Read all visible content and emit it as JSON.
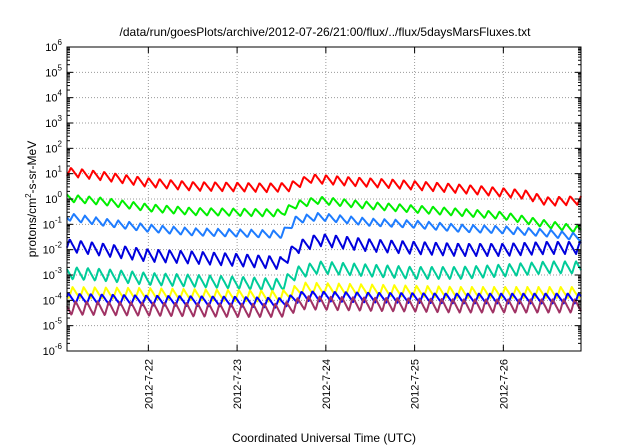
{
  "chart_data": {
    "type": "line",
    "title": "/data/run/goesPlots/archive/2012-07-26/21:00/flux/../flux/5daysMarsFluxes.txt",
    "xlabel": "Coordinated Universal Time (UTC)",
    "ylabel_parts": [
      "protons/cm",
      "2",
      "-s-sr-MeV"
    ],
    "y_scale": "log",
    "ylim": [
      1e-06,
      1000000.0
    ],
    "y_tick_exponents": [
      -6,
      -5,
      -4,
      -3,
      -2,
      -1,
      0,
      1,
      2,
      3,
      4,
      5,
      6
    ],
    "xlim": [
      "2012-07-21 02:00",
      "2012-07-26 21:00"
    ],
    "x_ticks": [
      {
        "label": "2012-7-22",
        "t": "2012-07-22 00:00"
      },
      {
        "label": "2012-7-23",
        "t": "2012-07-23 00:00"
      },
      {
        "label": "2012-7-24",
        "t": "2012-07-24 00:00"
      },
      {
        "label": "2012-7-25",
        "t": "2012-07-25 00:00"
      },
      {
        "label": "2012-7-26",
        "t": "2012-07-26 00:00"
      }
    ],
    "grid": true,
    "series": [
      {
        "color": "#ff0000",
        "amp_dex": 0.35,
        "points": [
          [
            "2012-07-21 02:00",
            12
          ],
          [
            "2012-07-21 12:00",
            8
          ],
          [
            "2012-07-22 00:00",
            4.5
          ],
          [
            "2012-07-22 12:00",
            3.2
          ],
          [
            "2012-07-23 00:00",
            3
          ],
          [
            "2012-07-23 08:00",
            2.8
          ],
          [
            "2012-07-23 14:00",
            3
          ],
          [
            "2012-07-23 20:00",
            6.5
          ],
          [
            "2012-07-24 06:00",
            5
          ],
          [
            "2012-07-24 18:00",
            4
          ],
          [
            "2012-07-25 06:00",
            3
          ],
          [
            "2012-07-25 18:00",
            2.2
          ],
          [
            "2012-07-26 06:00",
            1.5
          ],
          [
            "2012-07-26 12:00",
            0.8
          ],
          [
            "2012-07-26 21:00",
            0.9
          ]
        ]
      },
      {
        "color": "#00ee00",
        "amp_dex": 0.3,
        "points": [
          [
            "2012-07-21 02:00",
            1.1
          ],
          [
            "2012-07-21 12:00",
            0.8
          ],
          [
            "2012-07-22 00:00",
            0.45
          ],
          [
            "2012-07-22 12:00",
            0.32
          ],
          [
            "2012-07-23 00:00",
            0.3
          ],
          [
            "2012-07-23 12:00",
            0.28
          ],
          [
            "2012-07-23 16:00",
            0.6
          ],
          [
            "2012-07-23 22:00",
            0.9
          ],
          [
            "2012-07-24 12:00",
            0.55
          ],
          [
            "2012-07-25 00:00",
            0.4
          ],
          [
            "2012-07-25 12:00",
            0.3
          ],
          [
            "2012-07-26 00:00",
            0.22
          ],
          [
            "2012-07-26 12:00",
            0.1
          ],
          [
            "2012-07-26 21:00",
            0.06
          ]
        ]
      },
      {
        "color": "#1e7cff",
        "amp_dex": 0.3,
        "points": [
          [
            "2012-07-21 02:00",
            0.2
          ],
          [
            "2012-07-21 12:00",
            0.12
          ],
          [
            "2012-07-22 00:00",
            0.07
          ],
          [
            "2012-07-22 12:00",
            0.05
          ],
          [
            "2012-07-23 00:00",
            0.045
          ],
          [
            "2012-07-23 12:00",
            0.04
          ],
          [
            "2012-07-23 16:00",
            0.15
          ],
          [
            "2012-07-23 22:00",
            0.2
          ],
          [
            "2012-07-24 12:00",
            0.12
          ],
          [
            "2012-07-25 00:00",
            0.1
          ],
          [
            "2012-07-25 12:00",
            0.07
          ],
          [
            "2012-07-26 00:00",
            0.06
          ],
          [
            "2012-07-26 12:00",
            0.045
          ],
          [
            "2012-07-26 21:00",
            0.03
          ]
        ]
      },
      {
        "color": "#0000dd",
        "amp_dex": 0.5,
        "points": [
          [
            "2012-07-21 02:00",
            0.015
          ],
          [
            "2012-07-21 12:00",
            0.01
          ],
          [
            "2012-07-22 00:00",
            0.006
          ],
          [
            "2012-07-22 12:00",
            0.005
          ],
          [
            "2012-07-23 00:00",
            0.004
          ],
          [
            "2012-07-23 12:00",
            0.003
          ],
          [
            "2012-07-23 16:00",
            0.012
          ],
          [
            "2012-07-23 22:00",
            0.025
          ],
          [
            "2012-07-24 12:00",
            0.015
          ],
          [
            "2012-07-25 00:00",
            0.012
          ],
          [
            "2012-07-25 12:00",
            0.01
          ],
          [
            "2012-07-26 00:00",
            0.01
          ],
          [
            "2012-07-26 12:00",
            0.012
          ],
          [
            "2012-07-26 21:00",
            0.012
          ]
        ]
      },
      {
        "color": "#00cc99",
        "amp_dex": 0.5,
        "points": [
          [
            "2012-07-21 02:00",
            0.0012
          ],
          [
            "2012-07-21 12:00",
            0.001
          ],
          [
            "2012-07-22 00:00",
            0.0007
          ],
          [
            "2012-07-23 00:00",
            0.0005
          ],
          [
            "2012-07-23 12:00",
            0.0004
          ],
          [
            "2012-07-23 16:00",
            0.0012
          ],
          [
            "2012-07-23 22:00",
            0.002
          ],
          [
            "2012-07-24 12:00",
            0.0015
          ],
          [
            "2012-07-25 00:00",
            0.0012
          ],
          [
            "2012-07-25 12:00",
            0.0012
          ],
          [
            "2012-07-26 00:00",
            0.0015
          ],
          [
            "2012-07-26 12:00",
            0.002
          ],
          [
            "2012-07-26 21:00",
            0.002
          ]
        ]
      },
      {
        "color": "#ffff00",
        "amp_dex": 0.45,
        "points": [
          [
            "2012-07-21 02:00",
            0.0002
          ],
          [
            "2012-07-22 00:00",
            0.00018
          ],
          [
            "2012-07-23 00:00",
            0.00015
          ],
          [
            "2012-07-23 12:00",
            0.00014
          ],
          [
            "2012-07-23 18:00",
            0.0003
          ],
          [
            "2012-07-24 12:00",
            0.00025
          ],
          [
            "2012-07-25 12:00",
            0.0002
          ],
          [
            "2012-07-26 12:00",
            0.0002
          ],
          [
            "2012-07-26 21:00",
            0.0002
          ]
        ]
      },
      {
        "color": "#0000ff",
        "amp_dex": 0.4,
        "points": [
          [
            "2012-07-21 02:00",
            0.00012
          ],
          [
            "2012-07-22 00:00",
            0.0001
          ],
          [
            "2012-07-23 00:00",
            9e-05
          ],
          [
            "2012-07-23 12:00",
            8e-05
          ],
          [
            "2012-07-23 18:00",
            0.00015
          ],
          [
            "2012-07-24 12:00",
            0.00013
          ],
          [
            "2012-07-25 12:00",
            0.00012
          ],
          [
            "2012-07-26 12:00",
            0.00012
          ],
          [
            "2012-07-26 21:00",
            0.00012
          ]
        ]
      },
      {
        "color": "#a03264",
        "amp_dex": 0.55,
        "points": [
          [
            "2012-07-21 02:00",
            5e-05
          ],
          [
            "2012-07-22 00:00",
            4.5e-05
          ],
          [
            "2012-07-23 00:00",
            4e-05
          ],
          [
            "2012-07-23 12:00",
            4e-05
          ],
          [
            "2012-07-23 18:00",
            8e-05
          ],
          [
            "2012-07-24 12:00",
            7e-05
          ],
          [
            "2012-07-25 12:00",
            6e-05
          ],
          [
            "2012-07-26 12:00",
            6e-05
          ],
          [
            "2012-07-26 21:00",
            6e-05
          ]
        ]
      }
    ]
  }
}
